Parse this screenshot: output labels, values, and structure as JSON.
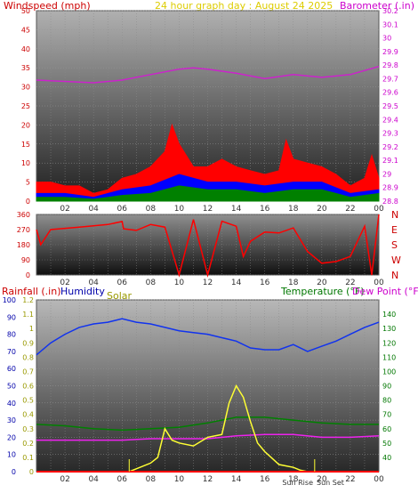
{
  "header": {
    "left_label": "Windspeed (mph)",
    "center_label": "24 hour graph day : August 24 2025",
    "right_label": "Barometer (.in)"
  },
  "colors": {
    "wind_gust": "#ff0000",
    "wind_avg": "#0000ff",
    "wind_low": "#008000",
    "wind_speed": "#ffff00",
    "barometer": "#cc22cc",
    "direction": "#ff0000",
    "humidity": "#1133ee",
    "solar": "#ffff33",
    "temperature": "#008000",
    "dewpoint": "#ee22ee",
    "rainfall": "#ff0000",
    "label_red": "#cc0000",
    "label_blue": "#0000aa",
    "label_olive": "#999900",
    "label_green": "#007700",
    "label_magenta": "#cc00cc",
    "label_yellow": "#ddcc00"
  },
  "x_axis": {
    "ticks": [
      "02",
      "04",
      "06",
      "08",
      "10",
      "12",
      "14",
      "16",
      "18",
      "20",
      "22",
      "00"
    ],
    "markers": [
      "Sun Rise",
      "Sun Set"
    ]
  },
  "chart_data": [
    {
      "type": "line",
      "name": "wind-barometer",
      "x_unit": "hour",
      "x_range": [
        0,
        24
      ],
      "left_axis": {
        "label": "Windspeed (mph)",
        "ylim": [
          0,
          50
        ],
        "ticks": [
          0,
          5,
          10,
          15,
          20,
          25,
          30,
          35,
          40,
          45,
          50
        ]
      },
      "right_axis": {
        "label": "Barometer (.in)",
        "ylim": [
          28.8,
          30.2
        ],
        "ticks": [
          "28.8",
          "28.9",
          "29",
          "29.1",
          "29.2",
          "29.3",
          "29.4",
          "29.5",
          "29.6",
          "29.7",
          "29.8",
          "29.9",
          "30",
          "30.1",
          "30.2"
        ]
      },
      "series": [
        {
          "name": "gust",
          "axis": "left",
          "x": [
            0,
            1,
            2,
            3,
            4,
            5,
            6,
            7,
            8,
            9,
            9.5,
            10,
            11,
            12,
            13,
            14,
            15,
            16,
            17,
            17.5,
            18,
            19,
            20,
            21,
            22,
            23,
            23.5,
            24
          ],
          "values": [
            5,
            5,
            4,
            4,
            2,
            3,
            6,
            7,
            9,
            13,
            20,
            15,
            9,
            9,
            11,
            9,
            8,
            7,
            8,
            16,
            11,
            10,
            9,
            7,
            4,
            6,
            12,
            6
          ]
        },
        {
          "name": "average",
          "axis": "left",
          "x": [
            0,
            2,
            4,
            6,
            8,
            10,
            12,
            14,
            16,
            18,
            20,
            22,
            24
          ],
          "values": [
            2,
            2,
            1,
            3,
            4,
            7,
            5,
            5,
            4,
            5,
            5,
            2,
            3
          ]
        },
        {
          "name": "low",
          "axis": "left",
          "x": [
            0,
            2,
            4,
            6,
            8,
            10,
            12,
            14,
            16,
            18,
            20,
            22,
            24
          ],
          "values": [
            1,
            1,
            0.5,
            1.5,
            2,
            4,
            3,
            3,
            2,
            3,
            3,
            1,
            2
          ]
        },
        {
          "name": "barometer",
          "axis": "right",
          "x": [
            0,
            2,
            4,
            6,
            8,
            10,
            11,
            12,
            14,
            16,
            18,
            20,
            22,
            24
          ],
          "values": [
            29.69,
            29.68,
            29.67,
            29.69,
            29.73,
            29.77,
            29.78,
            29.77,
            29.74,
            29.7,
            29.73,
            29.71,
            29.73,
            29.79
          ]
        }
      ]
    },
    {
      "type": "line",
      "name": "wind-direction",
      "x_unit": "hour",
      "x_range": [
        0,
        24
      ],
      "left_axis": {
        "ylim": [
          0,
          360
        ],
        "ticks": [
          0,
          90,
          180,
          270,
          360
        ]
      },
      "right_axis": {
        "ticks": [
          "N",
          "E",
          "S",
          "W",
          "N"
        ]
      },
      "series": [
        {
          "name": "direction",
          "x": [
            0,
            0.3,
            1,
            3,
            5,
            6,
            6.1,
            7,
            8,
            9,
            10,
            11,
            12,
            13,
            14,
            14.5,
            15,
            16,
            17,
            18,
            19,
            20,
            21,
            22,
            23,
            23.5,
            24
          ],
          "values": [
            270,
            180,
            270,
            285,
            300,
            318,
            275,
            265,
            300,
            285,
            0,
            330,
            0,
            320,
            290,
            110,
            200,
            255,
            250,
            280,
            140,
            70,
            80,
            110,
            290,
            0,
            360
          ]
        }
      ]
    },
    {
      "type": "line",
      "name": "humidity-temp-solar",
      "x_unit": "hour",
      "x_range": [
        0,
        24
      ],
      "rain_axis": {
        "label": "Rainfall (.in)",
        "ylim": [
          0,
          1.2
        ],
        "ticks": [
          "0",
          "0.1",
          "0.2",
          "0.3",
          "0.4",
          "0.5",
          "0.6",
          "0.7",
          "0.8",
          "0.9",
          "1",
          "1.1",
          "1.2"
        ]
      },
      "humidity_axis": {
        "label": "Humidity",
        "ylim": [
          0,
          100
        ],
        "ticks": [
          0,
          10,
          20,
          30,
          40,
          50,
          60,
          70,
          80,
          90,
          100
        ]
      },
      "temp_axis": {
        "label": "Temperature (°F)",
        "label2": "Dew Point (°F)",
        "ylim": [
          30,
          150
        ],
        "ticks": [
          40,
          50,
          60,
          70,
          80,
          90,
          100,
          110,
          120,
          130,
          140
        ]
      },
      "solar_label": "Solar",
      "series": [
        {
          "name": "humidity",
          "axis": "humidity",
          "x": [
            0,
            1,
            2,
            3,
            4,
            5,
            6,
            7,
            8,
            9,
            10,
            11,
            12,
            13,
            14,
            15,
            16,
            17,
            18,
            19,
            20,
            21,
            22,
            23,
            24
          ],
          "values": [
            68,
            75,
            80,
            84,
            86,
            87,
            89,
            87,
            86,
            84,
            82,
            81,
            80,
            78,
            76,
            72,
            71,
            71,
            74,
            70,
            73,
            76,
            80,
            84,
            87
          ]
        },
        {
          "name": "temperature",
          "axis": "temp",
          "x": [
            0,
            2,
            4,
            6,
            8,
            10,
            12,
            14,
            16,
            18,
            20,
            22,
            24
          ],
          "values": [
            63,
            62,
            60,
            59,
            60,
            61,
            64,
            68,
            68,
            66,
            64,
            63,
            63
          ]
        },
        {
          "name": "dewpoint",
          "axis": "temp",
          "x": [
            0,
            2,
            4,
            6,
            8,
            10,
            12,
            14,
            16,
            18,
            20,
            22,
            24
          ],
          "values": [
            52,
            52,
            52,
            52,
            53,
            53,
            53,
            55,
            56,
            56,
            54,
            54,
            55
          ]
        },
        {
          "name": "solar",
          "axis": "rain",
          "x": [
            0,
            6.5,
            7,
            8,
            8.5,
            9,
            9.5,
            10,
            11,
            12,
            13,
            13.5,
            14,
            14.5,
            15,
            15.5,
            16,
            17,
            18,
            18.5,
            19,
            24
          ],
          "values": [
            0,
            0,
            0.02,
            0.06,
            0.1,
            0.3,
            0.22,
            0.2,
            0.18,
            0.24,
            0.26,
            0.48,
            0.6,
            0.52,
            0.35,
            0.2,
            0.14,
            0.05,
            0.03,
            0.01,
            0,
            0
          ]
        },
        {
          "name": "rainfall",
          "axis": "rain",
          "x": [
            0,
            24
          ],
          "values": [
            0,
            0
          ]
        }
      ]
    }
  ]
}
